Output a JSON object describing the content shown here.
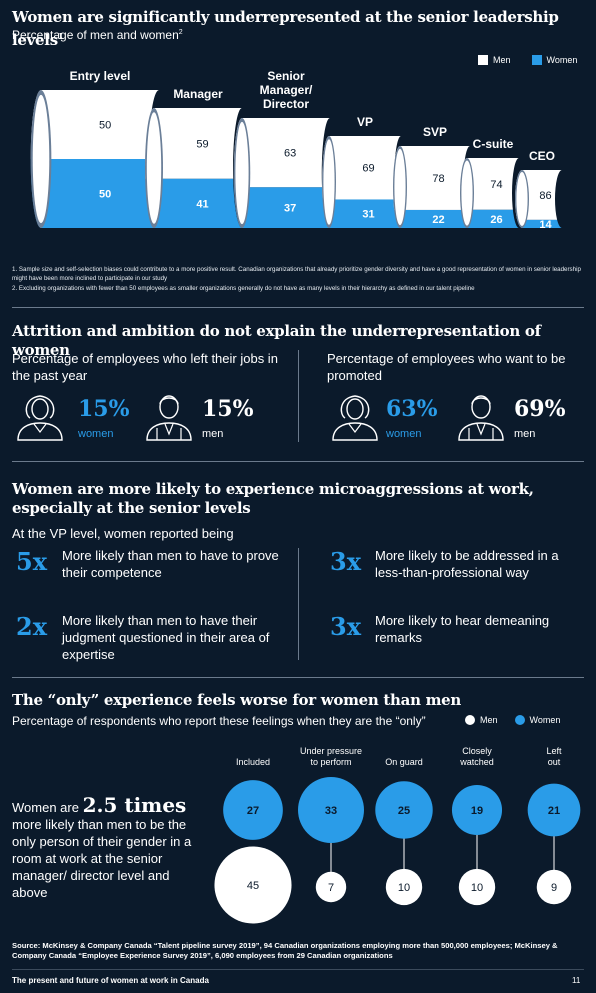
{
  "section1": {
    "title": "Women are significantly underrepresented at the senior leadership levels",
    "title_sup": "1",
    "subtitle": "Percentage of men and women",
    "subtitle_sup": "2",
    "legend": {
      "men": "Men",
      "women": "Women"
    },
    "footnotes": [
      "1. Sample size and self-selection biases could contribute to a more positive result. Canadian organizations that already prioritize gender diversity and have a good representation of women in senior leadership might have been more inclined to participate in our study",
      "2. Excluding organizations with fewer than 50 employees as smaller organizations generally do not have as many levels in their hierarchy as defined in our talent pipeline"
    ]
  },
  "chart_data": [
    {
      "type": "bar",
      "categories": [
        "Entry level",
        "Manager",
        "Senior Manager/ Director",
        "VP",
        "SVP",
        "C-suite",
        "CEO"
      ],
      "series": [
        {
          "name": "Men",
          "values": [
            50,
            59,
            63,
            69,
            78,
            74,
            86
          ]
        },
        {
          "name": "Women",
          "values": [
            50,
            41,
            37,
            31,
            22,
            26,
            14
          ]
        }
      ],
      "title": "Percentage of men and women",
      "legend": "top-right",
      "colors": {
        "Men": "#ffffff",
        "Women": "#2a9ce8"
      }
    },
    {
      "type": "scatter",
      "categories": [
        "Included",
        "Under pressure to perform",
        "On guard",
        "Closely watched",
        "Left out"
      ],
      "series": [
        {
          "name": "Men",
          "values": [
            45,
            7,
            10,
            10,
            9
          ]
        },
        {
          "name": "Women",
          "values": [
            27,
            33,
            25,
            19,
            21
          ]
        }
      ],
      "title": "Percentage of respondents who report these feelings when they are the “only”",
      "legend": "top-right",
      "colors": {
        "Men": "#ffffff",
        "Women": "#2a9ce8"
      }
    }
  ],
  "section2": {
    "title": "Attrition and ambition do not explain the underrepresentation of women",
    "left": {
      "label": "Percentage of employees who left their jobs in the past year",
      "women_value": "15%",
      "women_label": "women",
      "men_value": "15%",
      "men_label": "men"
    },
    "right": {
      "label": "Percentage of employees who want to be promoted",
      "women_value": "63%",
      "women_label": "women",
      "men_value": "69%",
      "men_label": "men"
    }
  },
  "section3": {
    "title": "Women are more likely to experience microaggressions at work, especially at the senior levels",
    "intro": "At the VP level, women reported being",
    "items": [
      {
        "mult": "5x",
        "text": "More likely than men to have to prove their competence"
      },
      {
        "mult": "3x",
        "text": "More likely to be addressed in a less-than-professional way"
      },
      {
        "mult": "2x",
        "text": "More likely than men to have their judgment questioned in their area of expertise"
      },
      {
        "mult": "3x",
        "text": "More likely to hear demeaning remarks"
      }
    ]
  },
  "section4": {
    "title": "The “only” experience feels worse for women than men",
    "subtitle": "Percentage of respondents who report these feelings when they are the “only”",
    "legend": {
      "men": "Men",
      "women": "Women"
    },
    "callout_pre": "Women are ",
    "callout_big": "2.5 times",
    "callout_post": " more likely than men to be the only person of their gender in a room at work at the senior manager/ director level and above"
  },
  "source": "Source: McKinsey & Company Canada “Talent pipeline survey 2019”, 94 Canadian organizations employing more than 500,000 employees; McKinsey & Company Canada “Employee Experience Survey 2019”, 6,090 employees from 29 Canadian organizations",
  "footer": {
    "title": "The present and future of women at work in Canada",
    "page": "11"
  }
}
